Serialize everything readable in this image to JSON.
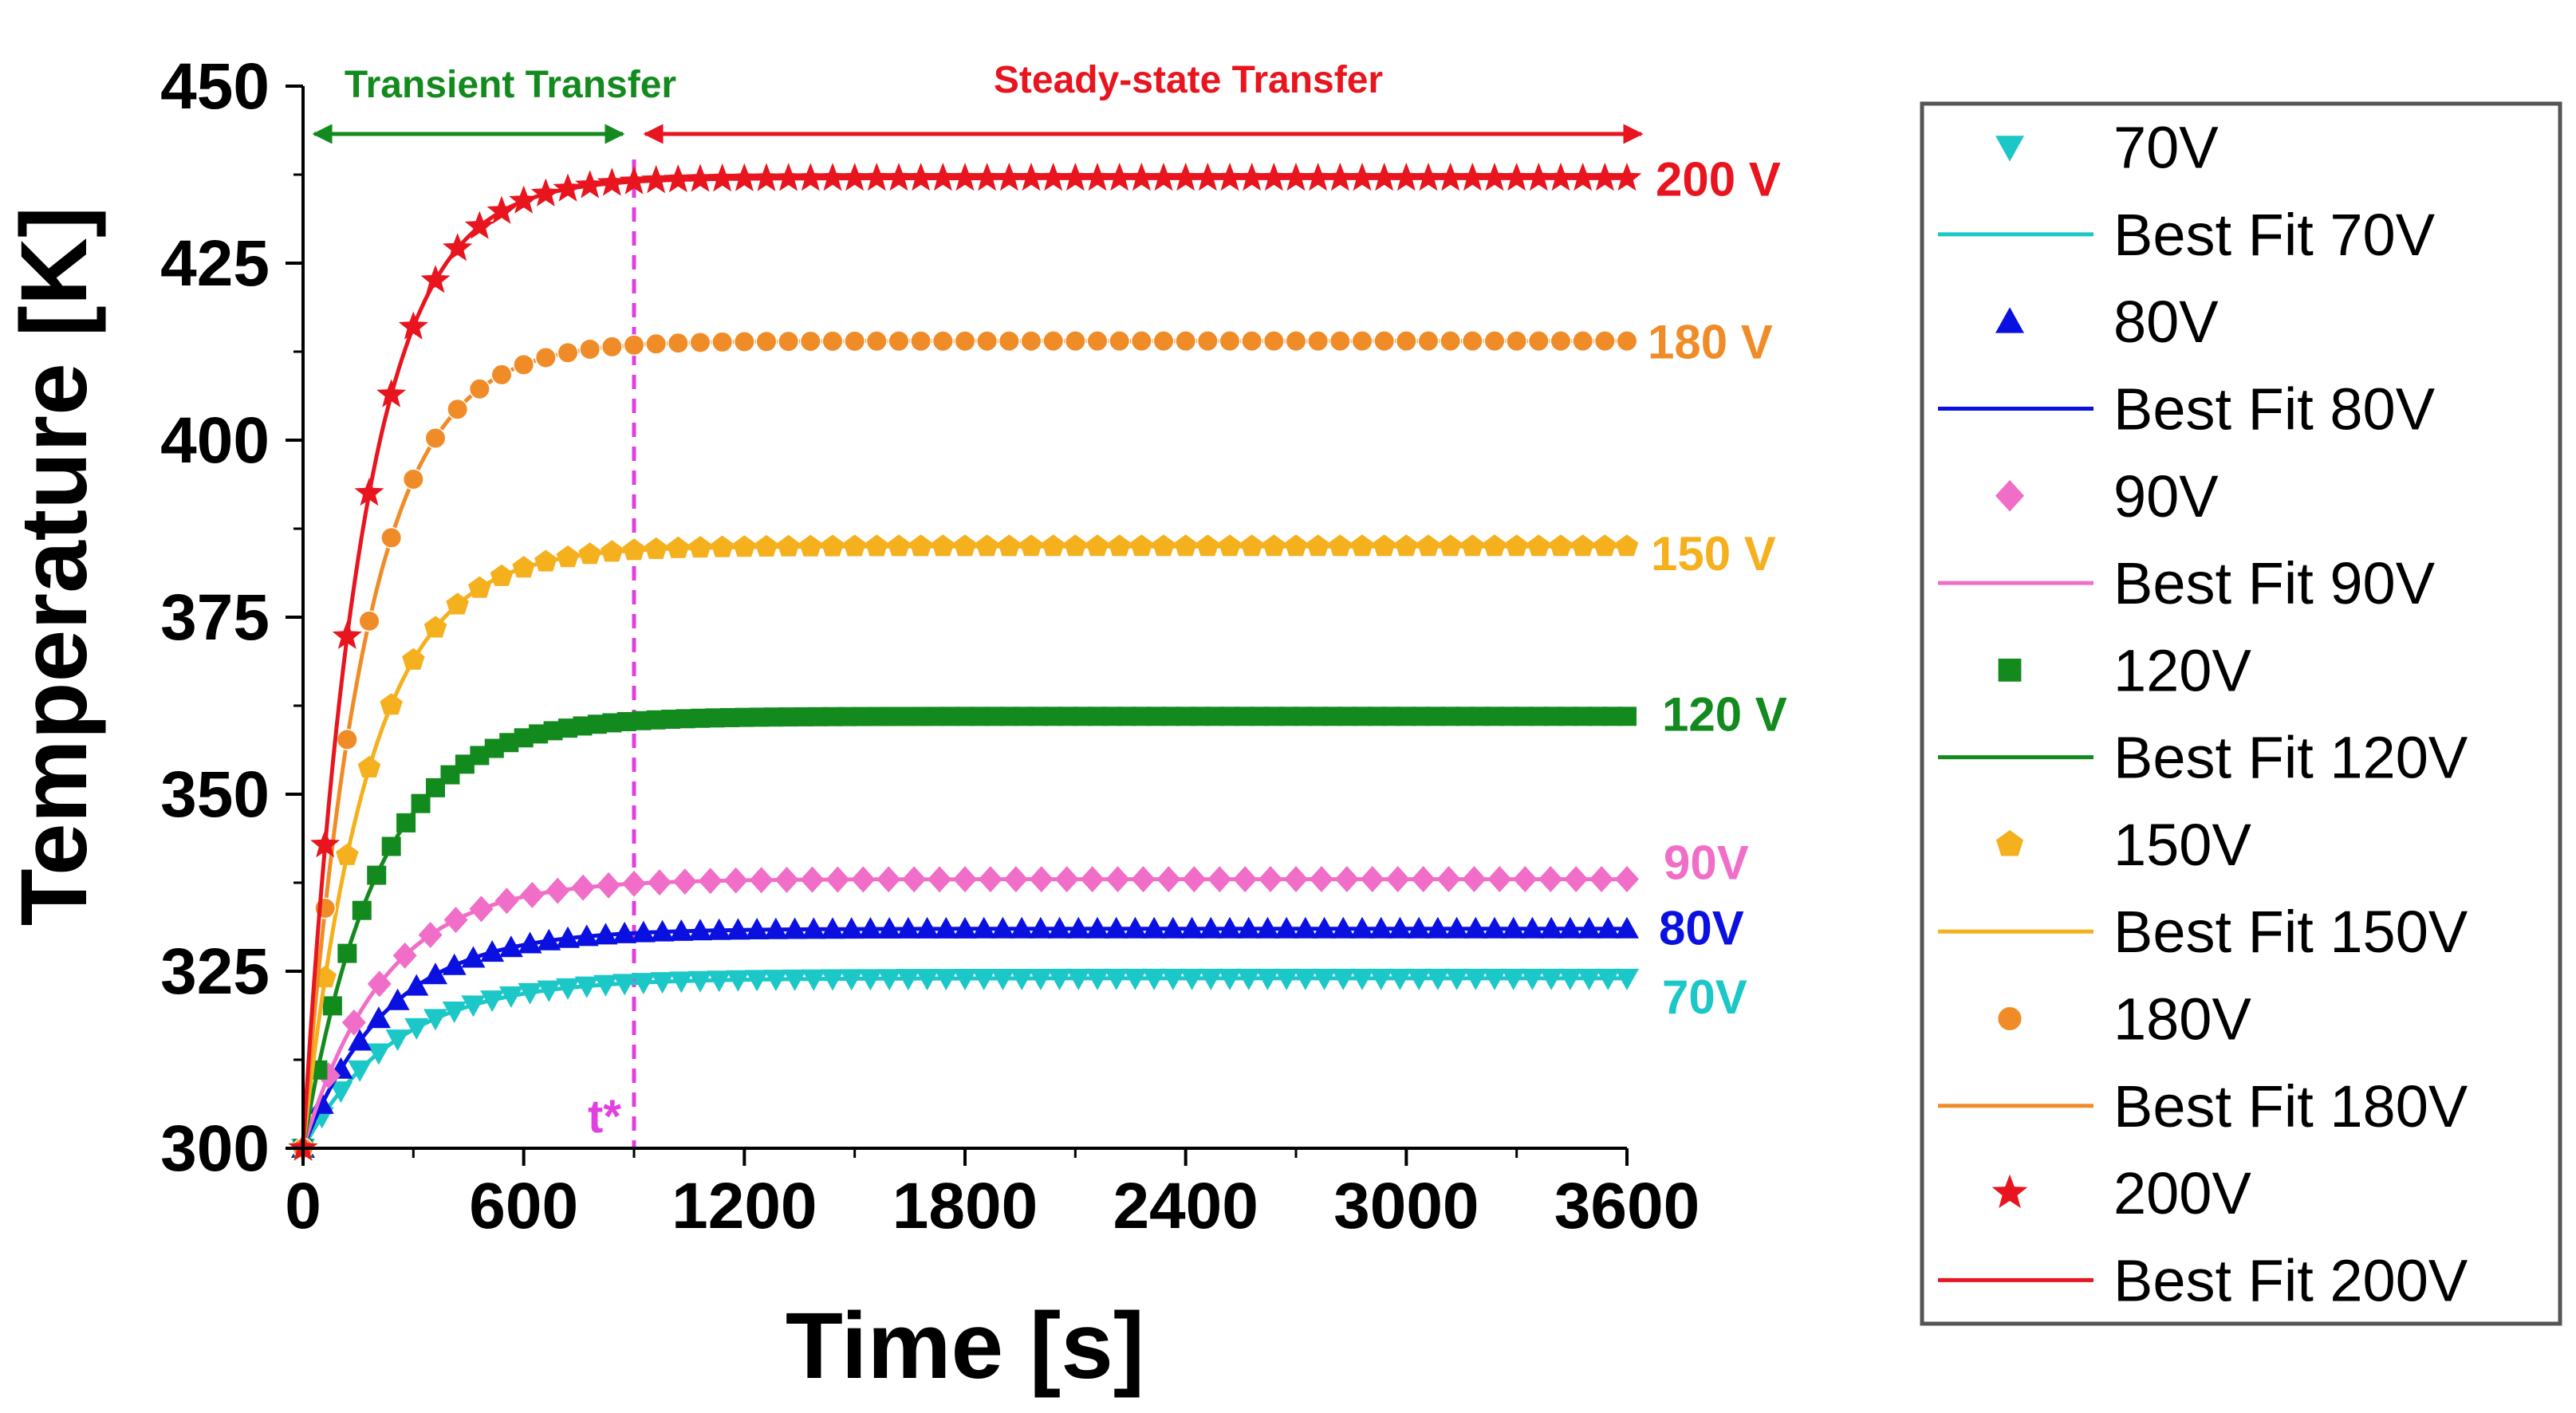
{
  "chart_data": {
    "type": "line",
    "xlabel": "Time [s]",
    "ylabel": "Temperature [K]",
    "xlim": [
      0,
      3600
    ],
    "ylim": [
      300,
      450
    ],
    "xticks": [
      "0",
      "600",
      "1200",
      "1800",
      "2400",
      "3000",
      "3600"
    ],
    "yticks": [
      "300",
      "325",
      "350",
      "375",
      "400",
      "425",
      "450"
    ],
    "t_star": 900,
    "t_star_label": "t*",
    "phase_labels": {
      "transient": "Transient Transfer",
      "steady": "Steady-state Transfer"
    },
    "series": [
      {
        "name": "70V",
        "fit_name": "Best Fit 70V",
        "label": "70V",
        "color": "#1CC7C7",
        "marker": "triangle-down",
        "t0": 300,
        "tss": 324,
        "tau": 250,
        "n_markers": 70
      },
      {
        "name": "80V",
        "fit_name": "Best Fit 80V",
        "label": "80V",
        "color": "#0A10E0",
        "marker": "triangle-up",
        "t0": 300,
        "tss": 331,
        "tau": 230,
        "n_markers": 70
      },
      {
        "name": "90V",
        "fit_name": "Best Fit 90V",
        "label": "90V",
        "color": "#F06EC8",
        "marker": "diamond",
        "t0": 300,
        "tss": 338,
        "tau": 220,
        "n_markers": 52
      },
      {
        "name": "120V",
        "fit_name": "Best Fit 120V",
        "label": "120 V",
        "color": "#138A1E",
        "marker": "square",
        "t0": 300,
        "tss": 361,
        "tau": 200,
        "n_markers": 90
      },
      {
        "name": "150V",
        "fit_name": "Best Fit 150V",
        "label": "150 V",
        "color": "#F5B01E",
        "marker": "pentagon",
        "t0": 300,
        "tss": 385,
        "tau": 180,
        "n_markers": 60
      },
      {
        "name": "180V",
        "fit_name": "Best Fit 180V",
        "label": "180 V",
        "color": "#F08C28",
        "marker": "circle",
        "t0": 300,
        "tss": 414,
        "tau": 170,
        "n_markers": 60
      },
      {
        "name": "200V",
        "fit_name": "Best Fit 200V",
        "label": "200 V",
        "color": "#E8141E",
        "marker": "star",
        "t0": 300,
        "tss": 437,
        "tau": 160,
        "n_markers": 60
      }
    ]
  }
}
